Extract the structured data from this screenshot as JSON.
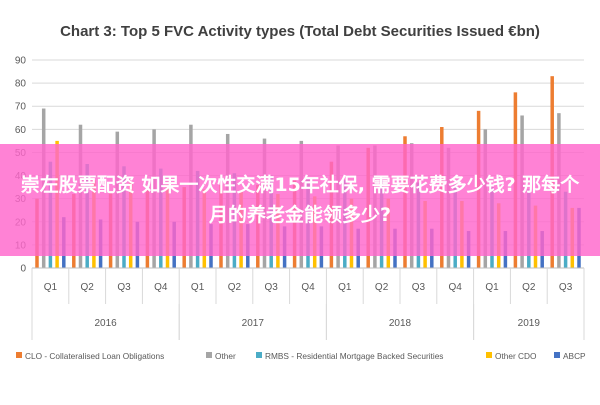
{
  "chart_data": {
    "type": "bar",
    "title": "Chart 3: Top 5 FVC Activity types (Total Debt Securities Issued €bn)",
    "ylim": [
      0,
      90
    ],
    "yticks": [
      "0",
      "10",
      "20",
      "30",
      "40",
      "50",
      "60",
      "70",
      "80",
      "90"
    ],
    "grid": true,
    "legend_position": "bottom",
    "categories": [
      "Q1",
      "Q2",
      "Q3",
      "Q4",
      "Q1",
      "Q2",
      "Q3",
      "Q4",
      "Q1",
      "Q2",
      "Q3",
      "Q4",
      "Q1",
      "Q2",
      "Q3"
    ],
    "years": [
      {
        "label": "2016",
        "span": 4
      },
      {
        "label": "2017",
        "span": 4
      },
      {
        "label": "2018",
        "span": 4
      },
      {
        "label": "2019",
        "span": 3
      }
    ],
    "series": [
      {
        "name": "CLO - Collateralised Loan Obligations",
        "color": "#ed7d31",
        "values": [
          30,
          32,
          33,
          34,
          35,
          36,
          36,
          38,
          46,
          52,
          57,
          61,
          68,
          76,
          83
        ]
      },
      {
        "name": "Other",
        "color": "#a5a5a5",
        "values": [
          69,
          62,
          59,
          60,
          62,
          58,
          56,
          55,
          53,
          53,
          54,
          52,
          60,
          66,
          67
        ]
      },
      {
        "name": "RMBS - Residential Mortgage Backed Securities",
        "color": "#4bacc6",
        "values": [
          46,
          45,
          44,
          43,
          42,
          41,
          40,
          39,
          38,
          38,
          37,
          36,
          35,
          34,
          33
        ]
      },
      {
        "name": "Other CDO",
        "color": "#ffc000",
        "values": [
          55,
          38,
          37,
          36,
          34,
          33,
          32,
          31,
          30,
          30,
          29,
          29,
          28,
          27,
          26
        ]
      },
      {
        "name": "ABCP",
        "color": "#4472c4",
        "values": [
          22,
          21,
          20,
          20,
          19,
          19,
          18,
          18,
          17,
          17,
          17,
          16,
          16,
          16,
          26
        ]
      }
    ]
  },
  "overlay": {
    "text": "崇左股票配资 如果一次性交满15年社保, 需要花费多少钱? 那每个月的养老金能领多少?",
    "color": "#ff66cc"
  }
}
